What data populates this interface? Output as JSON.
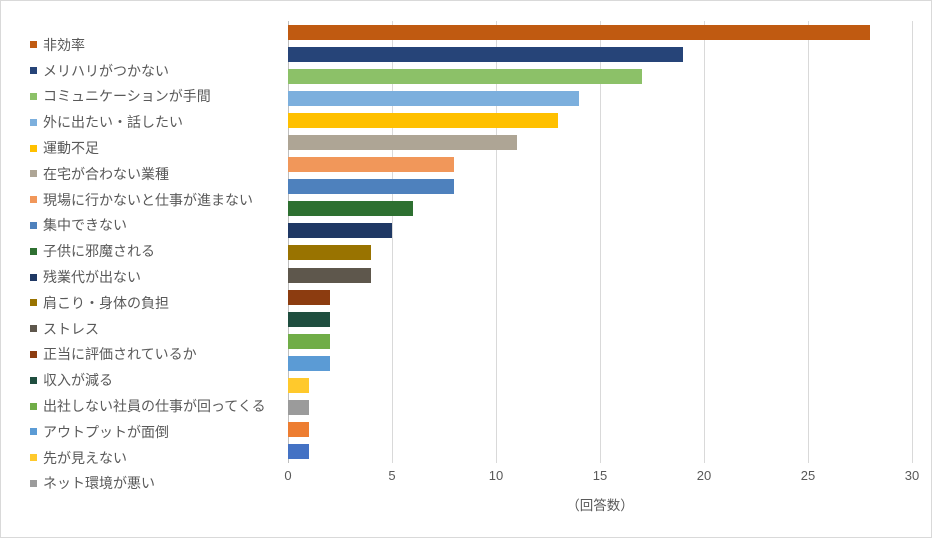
{
  "chart_data": {
    "type": "bar",
    "orientation": "horizontal",
    "title": "",
    "xlabel": "（回答数）",
    "ylabel": "",
    "xlim": [
      0,
      30
    ],
    "x_ticks": [
      0,
      5,
      10,
      15,
      20,
      25,
      30
    ],
    "grid": true,
    "legend_position": "left",
    "legend_visible_count": 18,
    "bars": [
      {
        "label": "非効率",
        "value": 28,
        "color": "#C05A11"
      },
      {
        "label": "メリハリがつかない",
        "value": 19,
        "color": "#264478"
      },
      {
        "label": "コミュニケーションが手間",
        "value": 17,
        "color": "#8CC168"
      },
      {
        "label": "外に出たい・話したい",
        "value": 14,
        "color": "#7CAFDD"
      },
      {
        "label": "運動不足",
        "value": 13,
        "color": "#FFC000"
      },
      {
        "label": "在宅が合わない業種",
        "value": 11,
        "color": "#AEA595"
      },
      {
        "label": "現場に行かないと仕事が進まない",
        "value": 8,
        "color": "#F1975A"
      },
      {
        "label": "集中できない",
        "value": 8,
        "color": "#4E81BD"
      },
      {
        "label": "子供に邪魔される",
        "value": 6,
        "color": "#2E7031"
      },
      {
        "label": "残業代が出ない",
        "value": 5,
        "color": "#1F3864"
      },
      {
        "label": "肩こり・身体の負担",
        "value": 4,
        "color": "#997300"
      },
      {
        "label": "ストレス",
        "value": 4,
        "color": "#5E574C"
      },
      {
        "label": "正当に評価されているか",
        "value": 2,
        "color": "#8C3C10"
      },
      {
        "label": "収入が減る",
        "value": 2,
        "color": "#1F4E3F"
      },
      {
        "label": "出社しない社員の仕事が回ってくる",
        "value": 2,
        "color": "#70AD47"
      },
      {
        "label": "アウトプットが面倒",
        "value": 2,
        "color": "#5B9BD5"
      },
      {
        "label": "先が見えない",
        "value": 1,
        "color": "#FFC92C"
      },
      {
        "label": "ネット環境が悪い",
        "value": 1,
        "color": "#9B9B9B"
      },
      {
        "label": "",
        "value": 1,
        "color": "#ED7D31"
      },
      {
        "label": "",
        "value": 1,
        "color": "#4472C4"
      }
    ],
    "colors": {
      "background": "#FFFFFF",
      "border": "#D9D9D9",
      "gridline": "#D9D9D9",
      "axis_line": "#BFBFBF",
      "text": "#595959"
    }
  }
}
